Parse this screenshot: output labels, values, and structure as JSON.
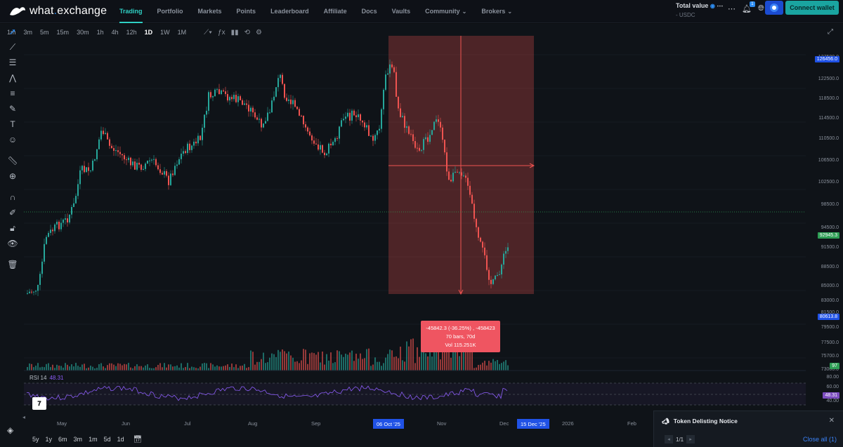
{
  "brand": {
    "name_main": "what",
    "name_dot": ".",
    "name_rest": "exchange"
  },
  "nav": [
    {
      "label": "Trading",
      "active": true
    },
    {
      "label": "Portfolio"
    },
    {
      "label": "Markets"
    },
    {
      "label": "Points"
    },
    {
      "label": "Leaderboard"
    },
    {
      "label": "Affiliate"
    },
    {
      "label": "Docs"
    },
    {
      "label": "Vaults"
    },
    {
      "label": "Community",
      "dropdown": true
    },
    {
      "label": "Brokers",
      "dropdown": true
    }
  ],
  "account": {
    "total_label": "Total value",
    "total_value": "- USDC",
    "notif_count": "1",
    "connect_label": "Connect wallet"
  },
  "timeframes": [
    "1m",
    "3m",
    "5m",
    "15m",
    "30m",
    "1h",
    "4h",
    "12h",
    "1D",
    "1W",
    "1M"
  ],
  "active_timeframe": "1D",
  "price_axis": {
    "ticks": [
      "127500.0",
      "122500.0",
      "118500.0",
      "114500.0",
      "110500.0",
      "106500.0",
      "102500.0",
      "98500.0",
      "94500.0",
      "91500.0",
      "88500.0",
      "85000.0",
      "83000.0",
      "81500.0",
      "79500.0",
      "77500.0",
      "75700.0",
      "73000.0"
    ],
    "high_tag": "126456.0",
    "current_tag": "92945.3",
    "low_tag": "80613.8",
    "volume_tag": "97",
    "rsi_ticks": [
      "80.00",
      "60.00",
      "40.00"
    ],
    "rsi_tag": "48.31"
  },
  "measure": {
    "line1": "-45842.3 (-36.25%) , -458423",
    "line2": "70 bars, 70d",
    "line3": "Vol 115.251K"
  },
  "rsi": {
    "label": "RSI 14",
    "value": "48.31"
  },
  "time_axis": {
    "labels": [
      {
        "text": "May"
      },
      {
        "text": "Jun"
      },
      {
        "text": "Jul"
      },
      {
        "text": "Aug"
      },
      {
        "text": "Sep"
      },
      {
        "text": "Nov"
      },
      {
        "text": "Dec"
      },
      {
        "text": "2026"
      },
      {
        "text": "Feb"
      }
    ],
    "range_start": "06 Oct '25",
    "range_end": "15 Dec '25"
  },
  "ranges": [
    "5y",
    "1y",
    "6m",
    "3m",
    "1m",
    "5d",
    "1d"
  ],
  "notice": {
    "title": "Token Delisting Notice",
    "pager": "1/1",
    "close_all": "Close all (1)"
  },
  "colors": {
    "up": "#26a69a",
    "down": "#ef5350",
    "accent": "#2fd0c4",
    "rsi": "#8b5cf6"
  }
}
